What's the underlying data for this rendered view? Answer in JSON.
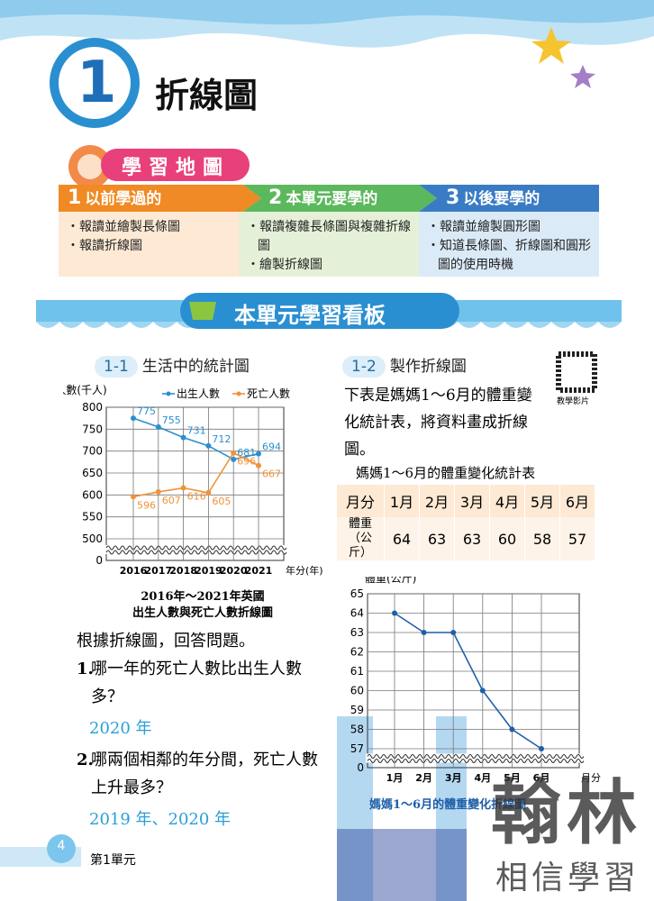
{
  "header": {
    "unit_number": "1",
    "title": "折線圖"
  },
  "learning_map": {
    "label": "學習地圖",
    "columns": [
      {
        "number": "1",
        "heading": "以前學過的",
        "items": [
          "報讀並繪製長條圖",
          "報讀折線圖"
        ]
      },
      {
        "number": "2",
        "heading": "本單元要學的",
        "items": [
          "報讀複雜長條圖與複雜折線圖",
          "繪製折線圖"
        ]
      },
      {
        "number": "3",
        "heading": "以後要學的",
        "items": [
          "報讀並繪製圓形圖",
          "知道長條圖、折線圖和圓形圖的使用時機"
        ]
      }
    ]
  },
  "banner": "本單元學習看板",
  "section_1": {
    "number": "1-1",
    "title": "生活中的統計圖",
    "caption": [
      "2016年～2021年英國",
      "出生人數與死亡人數折線圖"
    ],
    "prompt": "根據折線圖，回答問題。",
    "questions": [
      {
        "number": "1.",
        "text": "哪一年的死亡人數比出生人數多？",
        "answer": "2020 年"
      },
      {
        "number": "2.",
        "text": "哪兩個相鄰的年分間，死亡人數上升最多？",
        "answer": "2019 年、2020 年"
      }
    ]
  },
  "section_2": {
    "number": "1-2",
    "title": "製作折線圖",
    "qr_label": "教學影片",
    "intro": "下表是媽媽1～6月的體重變化統計表，將資料畫成折線圖。",
    "table": {
      "title": "媽媽1～6月的體重變化統計表",
      "header": [
        "月分",
        "1月",
        "2月",
        "3月",
        "4月",
        "5月",
        "6月"
      ],
      "row_label": "體重（公斤）",
      "values": [
        64,
        63,
        63,
        60,
        58,
        57
      ]
    },
    "caption": "媽媽1～6月的體重變化折線圖"
  },
  "chart_data": [
    {
      "type": "line",
      "y_label": "人數(千人)",
      "x_label": "年分(年)",
      "categories": [
        "2016",
        "2017",
        "2018",
        "2019",
        "2020",
        "2021"
      ],
      "series": [
        {
          "name": "出生人數",
          "color": "#2a8fd0",
          "values": [
            775,
            755,
            731,
            712,
            681,
            694
          ]
        },
        {
          "name": "死亡人數",
          "color": "#f0923a",
          "values": [
            596,
            607,
            616,
            605,
            696,
            667
          ]
        }
      ],
      "ylim": [
        0,
        800
      ],
      "yticks": [
        0,
        500,
        550,
        600,
        650,
        700,
        750,
        800
      ],
      "axis_break": true,
      "grid": true,
      "data_labels": true
    },
    {
      "type": "line",
      "y_label": "體重(公斤)",
      "x_label": "月分",
      "categories": [
        "1月",
        "2月",
        "3月",
        "4月",
        "5月",
        "6月"
      ],
      "values": [
        64,
        63,
        63,
        60,
        58,
        57
      ],
      "color": "#1f5fa8",
      "ylim": [
        0,
        65
      ],
      "yticks": [
        0,
        57,
        58,
        59,
        60,
        61,
        62,
        63,
        64,
        65
      ],
      "axis_break": true,
      "grid": true,
      "data_labels": false
    }
  ],
  "footer": {
    "page": "4",
    "unit": "第1單元"
  },
  "watermark": {
    "brand": "翰林",
    "slogan": "相信學習"
  }
}
